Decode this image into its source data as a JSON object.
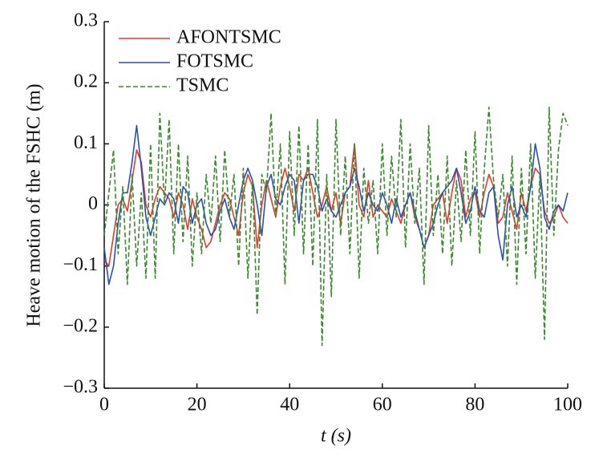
{
  "chart_data": {
    "type": "line",
    "xlabel": "t (s)",
    "ylabel": "Heave motion of the FSHC (m)",
    "xlim": [
      0,
      100
    ],
    "ylim": [
      -0.3,
      0.3
    ],
    "xticks": [
      0,
      20,
      40,
      60,
      80,
      100
    ],
    "yticks": [
      {
        "value": -0.3,
        "label": "−0.3"
      },
      {
        "value": -0.2,
        "label": "−0.2"
      },
      {
        "value": -0.1,
        "label": "−0.1"
      },
      0,
      0.1,
      0.2,
      0.3
    ],
    "grid": false,
    "legend": "upper left",
    "x": [
      0,
      1,
      2,
      3,
      4,
      5,
      6,
      7,
      8,
      9,
      10,
      11,
      12,
      13,
      14,
      15,
      16,
      17,
      18,
      19,
      20,
      21,
      22,
      23,
      24,
      25,
      26,
      27,
      28,
      29,
      30,
      31,
      32,
      33,
      34,
      35,
      36,
      37,
      38,
      39,
      40,
      41,
      42,
      43,
      44,
      45,
      46,
      47,
      48,
      49,
      50,
      51,
      52,
      53,
      54,
      55,
      56,
      57,
      58,
      59,
      60,
      61,
      62,
      63,
      64,
      65,
      66,
      67,
      68,
      69,
      70,
      71,
      72,
      73,
      74,
      75,
      76,
      77,
      78,
      79,
      80,
      81,
      82,
      83,
      84,
      85,
      86,
      87,
      88,
      89,
      90,
      91,
      92,
      93,
      94,
      95,
      96,
      97,
      98,
      99,
      100
    ],
    "series": [
      {
        "name": "AFONTSMC",
        "color": "#e8392b",
        "dash": false,
        "values": [
          -0.09,
          -0.1,
          -0.05,
          0.0,
          0.01,
          -0.01,
          0.04,
          0.09,
          0.07,
          0.0,
          -0.02,
          0.01,
          0.03,
          0.02,
          0.01,
          -0.02,
          0.02,
          0.0,
          -0.04,
          0.01,
          -0.02,
          -0.04,
          -0.07,
          -0.06,
          -0.03,
          0.0,
          0.02,
          0.01,
          -0.02,
          -0.05,
          0.02,
          0.05,
          0.03,
          -0.07,
          0.0,
          0.04,
          0.01,
          -0.02,
          0.03,
          0.06,
          0.03,
          -0.01,
          0.05,
          0.04,
          0.06,
          0.02,
          -0.02,
          0.0,
          0.03,
          -0.01,
          0.02,
          -0.03,
          0.02,
          0.03,
          0.1,
          0.0,
          -0.02,
          0.04,
          -0.02,
          0.0,
          -0.01,
          -0.02,
          0.01,
          -0.01,
          -0.03,
          0.0,
          0.02,
          -0.02,
          -0.04,
          -0.07,
          -0.05,
          0.0,
          0.01,
          0.02,
          -0.03,
          0.02,
          0.06,
          0.04,
          -0.02,
          0.01,
          0.02,
          -0.02,
          0.02,
          0.05,
          0.03,
          -0.03,
          -0.02,
          0.02,
          -0.01,
          -0.04,
          0.02,
          -0.01,
          0.03,
          0.06,
          0.05,
          -0.01,
          -0.03,
          -0.02,
          0.0,
          -0.02,
          -0.03
        ]
      },
      {
        "name": "FOTSMC",
        "color": "#2a4fb5",
        "dash": false,
        "values": [
          -0.07,
          -0.13,
          -0.1,
          -0.03,
          0.02,
          0.02,
          0.07,
          0.13,
          0.06,
          -0.02,
          -0.05,
          -0.02,
          0.01,
          0.0,
          0.02,
          0.01,
          -0.03,
          0.03,
          0.02,
          -0.03,
          0.0,
          0.01,
          -0.03,
          -0.05,
          -0.04,
          -0.01,
          0.01,
          -0.02,
          -0.04,
          0.0,
          0.04,
          0.06,
          0.04,
          0.0,
          -0.05,
          0.03,
          0.05,
          0.01,
          0.0,
          0.03,
          0.05,
          0.04,
          -0.03,
          0.04,
          0.05,
          0.05,
          0.03,
          -0.01,
          0.01,
          -0.01,
          -0.02,
          0.0,
          0.02,
          0.03,
          0.06,
          0.03,
          -0.01,
          0.02,
          0.0,
          -0.01,
          0.02,
          0.0,
          -0.03,
          0.01,
          -0.02,
          0.0,
          0.02,
          -0.01,
          -0.04,
          -0.07,
          -0.05,
          -0.03,
          0.0,
          0.02,
          0.03,
          0.04,
          0.06,
          0.02,
          -0.03,
          -0.01,
          0.03,
          -0.01,
          -0.02,
          0.02,
          0.03,
          -0.05,
          -0.09,
          0.0,
          0.03,
          -0.02,
          0.0,
          -0.02,
          0.03,
          0.1,
          0.06,
          -0.02,
          -0.04,
          -0.01,
          0.0,
          -0.01,
          0.02
        ]
      },
      {
        "name": "TSMC",
        "color": "#3a8a2e",
        "dash": true,
        "values": [
          -0.05,
          0.02,
          0.09,
          -0.08,
          0.03,
          -0.13,
          0.05,
          -0.1,
          0.02,
          -0.12,
          0.1,
          -0.12,
          0.15,
          0.0,
          0.14,
          -0.08,
          0.1,
          -0.06,
          0.08,
          -0.1,
          0.02,
          -0.08,
          0.05,
          -0.03,
          0.08,
          -0.06,
          0.09,
          -0.02,
          0.05,
          -0.1,
          0.06,
          -0.12,
          0.04,
          -0.18,
          0.05,
          0.02,
          0.15,
          -0.02,
          0.1,
          -0.13,
          0.12,
          -0.05,
          0.13,
          -0.08,
          0.1,
          -0.1,
          0.14,
          -0.23,
          0.05,
          -0.15,
          0.14,
          -0.05,
          0.08,
          -0.08,
          0.1,
          -0.12,
          0.06,
          -0.03,
          0.04,
          -0.08,
          0.1,
          -0.05,
          0.08,
          -0.02,
          0.14,
          -0.07,
          0.1,
          -0.03,
          0.06,
          -0.13,
          0.13,
          -0.05,
          0.05,
          -0.08,
          0.08,
          -0.1,
          0.04,
          -0.06,
          0.09,
          -0.05,
          0.12,
          -0.08,
          0.06,
          0.16,
          0.04,
          -0.02,
          0.05,
          -0.1,
          0.08,
          -0.13,
          0.06,
          -0.08,
          0.1,
          -0.12,
          0.05,
          -0.22,
          0.16,
          -0.05,
          0.09,
          0.15,
          0.13
        ]
      }
    ]
  }
}
